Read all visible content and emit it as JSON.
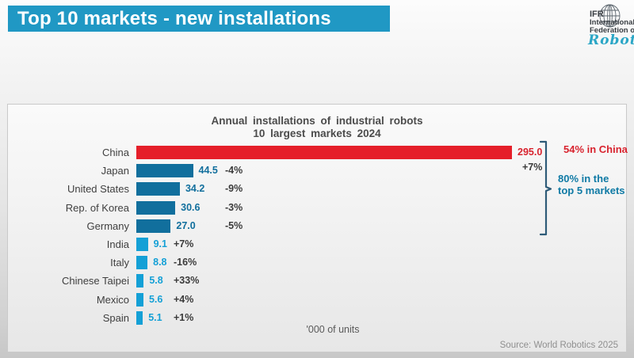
{
  "header": {
    "title": "Top 10 markets - new installations"
  },
  "logo": {
    "line1": "IFR",
    "line2": "International",
    "line3": "Federation of",
    "script": "Robotics"
  },
  "chart_data": {
    "type": "bar",
    "orientation": "horizontal",
    "title_line1": "Annual installations of industrial robots",
    "title_line2": "10 largest markets 2024",
    "unit_label": "'000 of units",
    "xlim": [
      0,
      300
    ],
    "rows": [
      {
        "label": "China",
        "value": 295.0,
        "value_label": "295.0",
        "change": "+7%",
        "group": "china"
      },
      {
        "label": "Japan",
        "value": 44.5,
        "value_label": "44.5",
        "change": "-4%",
        "group": "top"
      },
      {
        "label": "United States",
        "value": 34.2,
        "value_label": "34.2",
        "change": "-9%",
        "group": "top"
      },
      {
        "label": "Rep. of Korea",
        "value": 30.6,
        "value_label": "30.6",
        "change": "-3%",
        "group": "top"
      },
      {
        "label": "Germany",
        "value": 27.0,
        "value_label": "27.0",
        "change": "-5%",
        "group": "top"
      },
      {
        "label": "India",
        "value": 9.1,
        "value_label": "9.1",
        "change": "+7%",
        "group": "rest"
      },
      {
        "label": "Italy",
        "value": 8.8,
        "value_label": "8.8",
        "change": "-16%",
        "group": "rest"
      },
      {
        "label": "Chinese Taipei",
        "value": 5.8,
        "value_label": "5.8",
        "change": "+33%",
        "group": "rest"
      },
      {
        "label": "Mexico",
        "value": 5.6,
        "value_label": "5.6",
        "change": "+4%",
        "group": "rest"
      },
      {
        "label": "Spain",
        "value": 5.1,
        "value_label": "5.1",
        "change": "+1%",
        "group": "rest"
      }
    ],
    "annotations": {
      "china_share": "54% in China",
      "top5_share_line1": "80% in the",
      "top5_share_line2": "top 5 markets"
    },
    "colors": {
      "china_bar": "#e51f2a",
      "china_value_text": "#d8232e",
      "top_bar": "#116f9d",
      "rest_bar": "#14a0d6",
      "change_text": "#3b3b3b",
      "annotation_china": "#d8232e",
      "annotation_top5": "#0f7aa5",
      "bracket": "#2e5b78",
      "banner": "#2098c4"
    },
    "legend": "none",
    "grid": false
  },
  "footer": {
    "source": "Source: World Robotics 2025"
  }
}
